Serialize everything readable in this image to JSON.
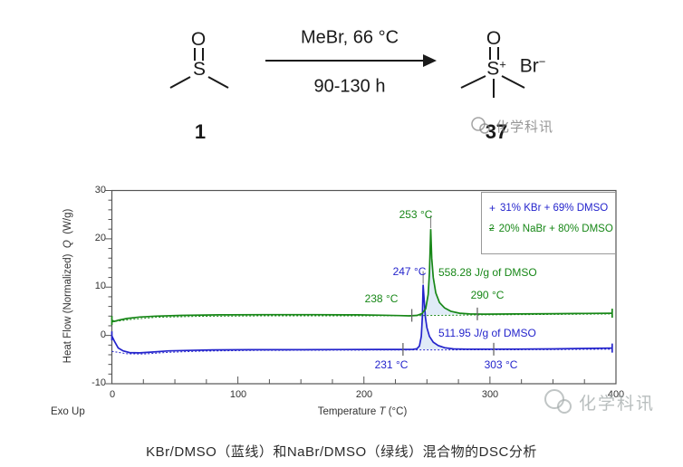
{
  "scheme": {
    "reactant": {
      "o": "O",
      "s": "S",
      "label": "1"
    },
    "product": {
      "o": "O",
      "s": "S",
      "plus": "+",
      "br": "Br",
      "minus": "−",
      "label": "37"
    },
    "arrow_top": "MeBr, 66 °C",
    "arrow_bottom": "90-130 h"
  },
  "watermark": {
    "text": "化学科讯"
  },
  "chart_data": {
    "type": "line",
    "xlabel_parts": {
      "pre": "Temperature",
      "sym": "T",
      "post": "(°C)"
    },
    "ylabel_parts": {
      "pre": "Heat Flow (Normalized)",
      "sym": "Q",
      "post": "(W/g)"
    },
    "exo_note": "Exo Up",
    "xlim": [
      0,
      400
    ],
    "ylim": [
      -10,
      30
    ],
    "x_ticks": [
      0,
      100,
      200,
      300,
      400
    ],
    "y_ticks": [
      30,
      20,
      10,
      0,
      -10
    ],
    "x_minor_step": 25,
    "y_minor_step": 2,
    "legend_position": "top-right",
    "grid": false,
    "fill_color": "#dde9f6",
    "legend": [
      {
        "marker": "+",
        "label": "31% KBr + 69% DMSO",
        "color": "#2424cc"
      },
      {
        "marker": "2",
        "label": "20% NaBr + 80% DMSO",
        "color": "#178717"
      }
    ],
    "series": [
      {
        "name": "31% KBr + 69% DMSO",
        "color": "#2424cc",
        "peak_temp_c": 247,
        "peak_height_wg": 10.5,
        "onset_c": 231,
        "end_c": 303,
        "enthalpy_label": "511.95 J/g of DMSO",
        "annotations": {
          "peak": "247 °C",
          "onset": "231 °C",
          "end": "303 °C"
        },
        "points": [
          [
            0,
            -0.1
          ],
          [
            2,
            -1.2
          ],
          [
            5,
            -2.6
          ],
          [
            9,
            -3.2
          ],
          [
            14,
            -3.55
          ],
          [
            22,
            -3.62
          ],
          [
            32,
            -3.45
          ],
          [
            45,
            -3.2
          ],
          [
            60,
            -3.1
          ],
          [
            80,
            -3.0
          ],
          [
            110,
            -2.95
          ],
          [
            150,
            -2.95
          ],
          [
            185,
            -2.92
          ],
          [
            210,
            -2.9
          ],
          [
            230,
            -2.9
          ],
          [
            239,
            -2.88
          ],
          [
            242,
            -2.75
          ],
          [
            244,
            -2.2
          ],
          [
            245.5,
            -0.2
          ],
          [
            246.4,
            4.0
          ],
          [
            247,
            10.5
          ],
          [
            247.8,
            7.2
          ],
          [
            248.8,
            3.8
          ],
          [
            250,
            1.6
          ],
          [
            252,
            -0.2
          ],
          [
            255,
            -1.4
          ],
          [
            259,
            -2.1
          ],
          [
            264,
            -2.55
          ],
          [
            271,
            -2.78
          ],
          [
            281,
            -2.85
          ],
          [
            300,
            -2.85
          ],
          [
            325,
            -2.82
          ],
          [
            350,
            -2.78
          ],
          [
            375,
            -2.7
          ],
          [
            397,
            -2.62
          ]
        ],
        "baseline_points": [
          [
            0,
            -3.3
          ],
          [
            12,
            -3.8
          ],
          [
            25,
            -3.85
          ],
          [
            45,
            -3.5
          ],
          [
            70,
            -3.25
          ],
          [
            110,
            -3.1
          ],
          [
            180,
            -3.05
          ],
          [
            260,
            -3.0
          ],
          [
            340,
            -2.95
          ],
          [
            397,
            -2.85
          ]
        ]
      },
      {
        "name": "20% NaBr + 80% DMSO",
        "color": "#178717",
        "peak_temp_c": 253,
        "peak_height_wg": 22,
        "onset_c": 238,
        "end_c": 290,
        "enthalpy_label": "558.28 J/g of DMSO",
        "annotations": {
          "peak": "253 °C",
          "onset": "238 °C",
          "end": "290 °C"
        },
        "points": [
          [
            0,
            3.1
          ],
          [
            2,
            2.9
          ],
          [
            5,
            3.15
          ],
          [
            12,
            3.5
          ],
          [
            22,
            3.8
          ],
          [
            35,
            4.0
          ],
          [
            55,
            4.15
          ],
          [
            85,
            4.25
          ],
          [
            120,
            4.3
          ],
          [
            160,
            4.3
          ],
          [
            195,
            4.25
          ],
          [
            215,
            4.18
          ],
          [
            228,
            4.1
          ],
          [
            236,
            4.05
          ],
          [
            242,
            4.15
          ],
          [
            246,
            4.5
          ],
          [
            249,
            5.5
          ],
          [
            251,
            8.5
          ],
          [
            252,
            13.0
          ],
          [
            253,
            22.0
          ],
          [
            253.8,
            16.0
          ],
          [
            255,
            12.0
          ],
          [
            257,
            8.8
          ],
          [
            260,
            6.8
          ],
          [
            264,
            5.7
          ],
          [
            269,
            5.0
          ],
          [
            276,
            4.6
          ],
          [
            284,
            4.45
          ],
          [
            295,
            4.4
          ],
          [
            320,
            4.45
          ],
          [
            350,
            4.5
          ],
          [
            375,
            4.55
          ],
          [
            397,
            4.6
          ]
        ],
        "baseline_points": [
          [
            0,
            2.8
          ],
          [
            15,
            3.3
          ],
          [
            35,
            3.75
          ],
          [
            70,
            3.95
          ],
          [
            120,
            4.05
          ],
          [
            200,
            4.05
          ],
          [
            245,
            4.1
          ],
          [
            295,
            4.25
          ],
          [
            350,
            4.35
          ],
          [
            397,
            4.45
          ]
        ]
      }
    ]
  },
  "caption": "KBr/DMSO（蓝线）和NaBr/DMSO（绿线）混合物的DSC分析"
}
